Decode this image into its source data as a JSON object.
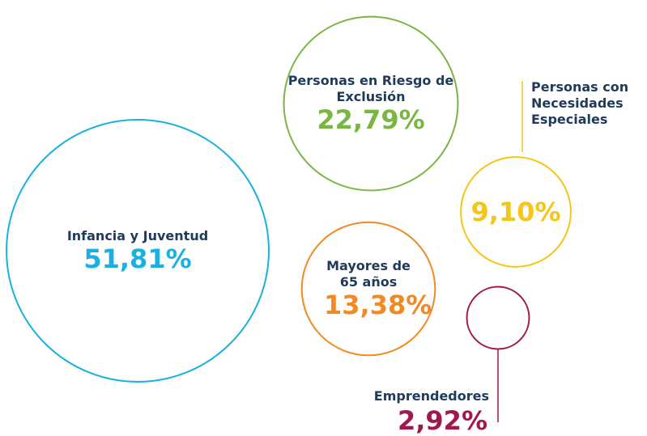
{
  "chart_data": {
    "type": "bubble",
    "categories": [
      "Infancia y Juventud",
      "Personas en Riesgo de Exclusión",
      "Personas con Necesidades Especiales",
      "Mayores de 65 años",
      "Emprendedores"
    ],
    "values": [
      51.81,
      22.79,
      9.1,
      13.38,
      2.92
    ],
    "value_labels": [
      "51,81%",
      "22,79%",
      "9,10%",
      "13,38%",
      "2,92%"
    ],
    "colors": [
      "#1ab0e0",
      "#7ab642",
      "#f5c518",
      "#f08a24",
      "#a0184f"
    ]
  }
}
